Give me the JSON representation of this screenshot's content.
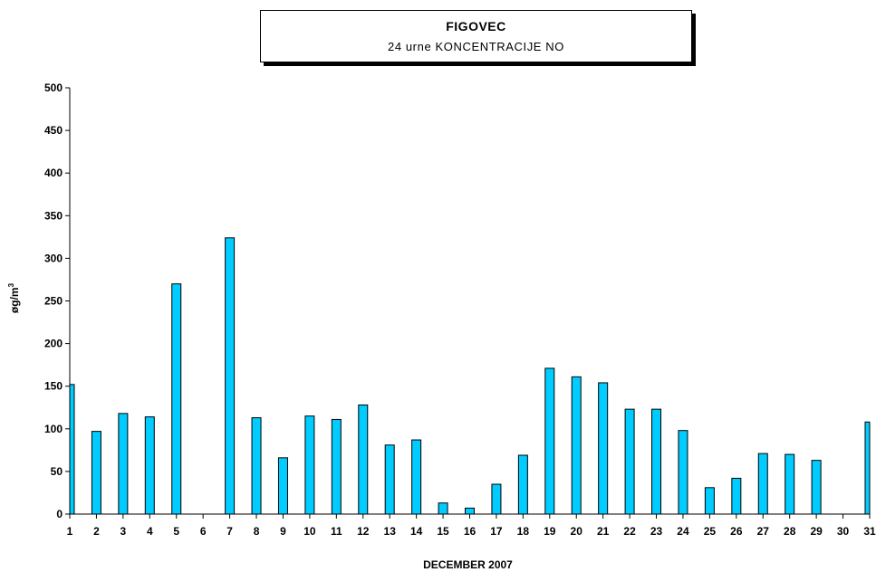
{
  "chart_data": {
    "type": "bar",
    "title": "FIGOVEC",
    "subtitle": "24 urne KONCENTRACIJE NO",
    "xlabel": "DECEMBER 2007",
    "ylabel": "øg/m",
    "ylabel_sup": "3",
    "ylim": [
      0,
      500
    ],
    "yticks": [
      0,
      50,
      100,
      150,
      200,
      250,
      300,
      350,
      400,
      450,
      500
    ],
    "categories": [
      "1",
      "2",
      "3",
      "4",
      "5",
      "6",
      "7",
      "8",
      "9",
      "10",
      "11",
      "12",
      "13",
      "14",
      "15",
      "16",
      "17",
      "18",
      "19",
      "20",
      "21",
      "22",
      "23",
      "24",
      "25",
      "26",
      "27",
      "28",
      "29",
      "30",
      "31"
    ],
    "values": [
      152,
      97,
      118,
      114,
      270,
      null,
      324,
      113,
      66,
      115,
      111,
      128,
      81,
      87,
      13,
      7,
      35,
      69,
      171,
      161,
      154,
      123,
      123,
      98,
      31,
      42,
      71,
      70,
      63,
      null,
      108
    ],
    "bar_color": "#00ccff",
    "grid": false
  }
}
